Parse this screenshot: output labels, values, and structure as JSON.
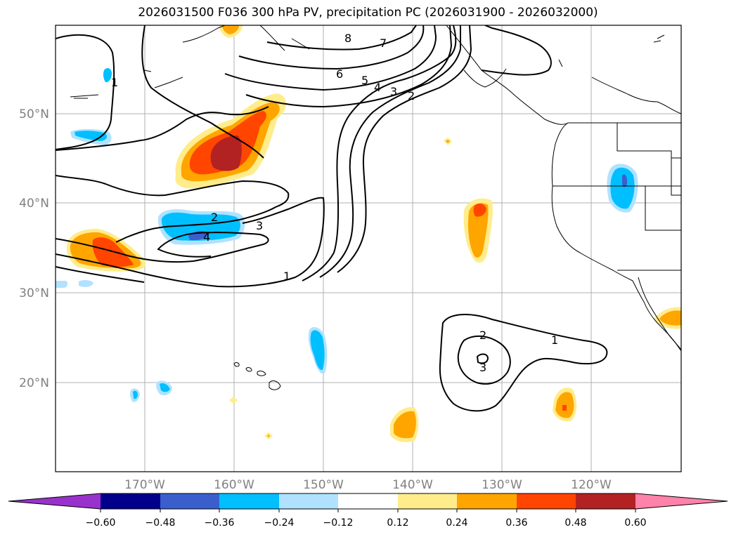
{
  "title": "2026031500 F036 300 hPa PV, precipitation PC (2026031900 - 2026032000)",
  "map": {
    "lat_labels": [
      "50°N",
      "40°N",
      "30°N",
      "20°N"
    ],
    "lon_labels": [
      "170°W",
      "160°W",
      "150°W",
      "140°W",
      "130°W",
      "120°W"
    ],
    "extent": {
      "lon_min": -180,
      "lon_max": -110,
      "lat_min": 10,
      "lat_max": 60
    },
    "gridlines": true
  },
  "pv_contour_labels": [
    "8",
    "7",
    "6",
    "5",
    "4",
    "3",
    "2",
    "1",
    "2",
    "3",
    "4",
    "1",
    "2",
    "3",
    "1"
  ],
  "colorbar": {
    "ticks": [
      "−0.60",
      "−0.48",
      "−0.36",
      "−0.24",
      "−0.12",
      "0.12",
      "0.24",
      "0.36",
      "0.48",
      "0.60"
    ],
    "colors": [
      "#9932cc",
      "#00008b",
      "#3a5fcd",
      "#00bfff",
      "#b0e2ff",
      "#ffffff",
      "#ffec8b",
      "#ffa500",
      "#ff4500",
      "#b22222",
      "#ff82ab"
    ],
    "extend": "both"
  }
}
